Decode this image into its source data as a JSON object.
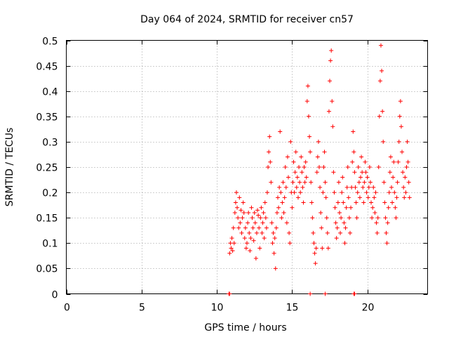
{
  "chart_data": {
    "type": "scatter",
    "title": "Day 064 of 2024, SRMTID for receiver cn57",
    "xlabel": "GPS time / hours",
    "ylabel": "SRMTID / TECUs",
    "xlim": [
      0,
      24
    ],
    "ylim": [
      0,
      0.5
    ],
    "xticks": [
      0,
      5,
      10,
      15,
      20
    ],
    "xtick_labels": [
      "0",
      "5",
      "10",
      "15",
      "20"
    ],
    "yticks": [
      0,
      0.05,
      0.1,
      0.15,
      0.2,
      0.25,
      0.3,
      0.35,
      0.4,
      0.45,
      0.5
    ],
    "ytick_labels": [
      "0",
      "0.05",
      "0.1",
      "0.15",
      "0.2",
      "0.25",
      "0.3",
      "0.35",
      "0.4",
      "0.45",
      "0.5"
    ],
    "grid": true,
    "marker": "+",
    "color": "#ff0000",
    "series": [
      {
        "name": "SRMTID",
        "points": [
          [
            10.8,
            0.0
          ],
          [
            10.85,
            0.0
          ],
          [
            16.2,
            0.0
          ],
          [
            17.2,
            0.0
          ],
          [
            19.1,
            0.0
          ],
          [
            19.15,
            0.0
          ],
          [
            10.85,
            0.08
          ],
          [
            10.9,
            0.1
          ],
          [
            10.95,
            0.09
          ],
          [
            11.0,
            0.11
          ],
          [
            11.05,
            0.085
          ],
          [
            11.1,
            0.13
          ],
          [
            11.15,
            0.1
          ],
          [
            11.2,
            0.16
          ],
          [
            11.25,
            0.18
          ],
          [
            11.3,
            0.2
          ],
          [
            11.35,
            0.17
          ],
          [
            11.4,
            0.15
          ],
          [
            11.45,
            0.13
          ],
          [
            11.5,
            0.19
          ],
          [
            11.55,
            0.14
          ],
          [
            11.6,
            0.165
          ],
          [
            11.65,
            0.12
          ],
          [
            11.7,
            0.15
          ],
          [
            11.75,
            0.18
          ],
          [
            11.8,
            0.16
          ],
          [
            11.85,
            0.11
          ],
          [
            11.9,
            0.13
          ],
          [
            11.95,
            0.09
          ],
          [
            12.0,
            0.1
          ],
          [
            12.05,
            0.14
          ],
          [
            12.1,
            0.16
          ],
          [
            12.15,
            0.12
          ],
          [
            12.2,
            0.085
          ],
          [
            12.25,
            0.11
          ],
          [
            12.3,
            0.17
          ],
          [
            12.35,
            0.15
          ],
          [
            12.4,
            0.13
          ],
          [
            12.45,
            0.105
          ],
          [
            12.5,
            0.16
          ],
          [
            12.55,
            0.14
          ],
          [
            12.6,
            0.07
          ],
          [
            12.65,
            0.12
          ],
          [
            12.7,
            0.165
          ],
          [
            12.75,
            0.155
          ],
          [
            12.8,
            0.13
          ],
          [
            12.85,
            0.09
          ],
          [
            12.9,
            0.15
          ],
          [
            12.95,
            0.17
          ],
          [
            13.0,
            0.12
          ],
          [
            13.05,
            0.14
          ],
          [
            13.1,
            0.16
          ],
          [
            13.15,
            0.11
          ],
          [
            13.2,
            0.18
          ],
          [
            13.25,
            0.15
          ],
          [
            13.3,
            0.13
          ],
          [
            13.35,
            0.2
          ],
          [
            13.4,
            0.25
          ],
          [
            13.45,
            0.28
          ],
          [
            13.5,
            0.31
          ],
          [
            13.55,
            0.26
          ],
          [
            13.6,
            0.22
          ],
          [
            13.65,
            0.14
          ],
          [
            13.7,
            0.1
          ],
          [
            13.75,
            0.12
          ],
          [
            13.8,
            0.08
          ],
          [
            13.85,
            0.11
          ],
          [
            13.9,
            0.05
          ],
          [
            13.95,
            0.13
          ],
          [
            14.0,
            0.16
          ],
          [
            14.05,
            0.19
          ],
          [
            14.1,
            0.17
          ],
          [
            14.15,
            0.21
          ],
          [
            14.2,
            0.32
          ],
          [
            14.25,
            0.2
          ],
          [
            14.3,
            0.15
          ],
          [
            14.35,
            0.18
          ],
          [
            14.4,
            0.22
          ],
          [
            14.45,
            0.16
          ],
          [
            14.5,
            0.19
          ],
          [
            14.55,
            0.25
          ],
          [
            14.6,
            0.21
          ],
          [
            14.65,
            0.14
          ],
          [
            14.7,
            0.27
          ],
          [
            14.75,
            0.23
          ],
          [
            14.8,
            0.12
          ],
          [
            14.85,
            0.1
          ],
          [
            14.9,
            0.3
          ],
          [
            14.95,
            0.2
          ],
          [
            15.0,
            0.17
          ],
          [
            15.05,
            0.22
          ],
          [
            15.1,
            0.26
          ],
          [
            15.15,
            0.2
          ],
          [
            15.2,
            0.24
          ],
          [
            15.25,
            0.28
          ],
          [
            15.3,
            0.21
          ],
          [
            15.35,
            0.23
          ],
          [
            15.4,
            0.19
          ],
          [
            15.45,
            0.25
          ],
          [
            15.5,
            0.22
          ],
          [
            15.55,
            0.2
          ],
          [
            15.6,
            0.27
          ],
          [
            15.65,
            0.24
          ],
          [
            15.7,
            0.21
          ],
          [
            15.75,
            0.18
          ],
          [
            15.8,
            0.25
          ],
          [
            15.85,
            0.22
          ],
          [
            15.9,
            0.26
          ],
          [
            15.95,
            0.23
          ],
          [
            16.0,
            0.38
          ],
          [
            16.05,
            0.41
          ],
          [
            16.1,
            0.35
          ],
          [
            16.15,
            0.31
          ],
          [
            16.2,
            0.28
          ],
          [
            16.25,
            0.22
          ],
          [
            16.3,
            0.18
          ],
          [
            16.35,
            0.15
          ],
          [
            16.4,
            0.12
          ],
          [
            16.45,
            0.1
          ],
          [
            16.5,
            0.08
          ],
          [
            16.55,
            0.06
          ],
          [
            16.6,
            0.09
          ],
          [
            16.65,
            0.24
          ],
          [
            16.7,
            0.27
          ],
          [
            16.75,
            0.3
          ],
          [
            16.8,
            0.25
          ],
          [
            16.85,
            0.21
          ],
          [
            16.9,
            0.16
          ],
          [
            16.95,
            0.13
          ],
          [
            17.0,
            0.09
          ],
          [
            17.05,
            0.2
          ],
          [
            17.1,
            0.25
          ],
          [
            17.15,
            0.28
          ],
          [
            17.2,
            0.22
          ],
          [
            17.25,
            0.19
          ],
          [
            17.3,
            0.15
          ],
          [
            17.35,
            0.12
          ],
          [
            17.4,
            0.09
          ],
          [
            17.45,
            0.36
          ],
          [
            17.5,
            0.42
          ],
          [
            17.55,
            0.46
          ],
          [
            17.6,
            0.48
          ],
          [
            17.65,
            0.38
          ],
          [
            17.7,
            0.33
          ],
          [
            17.75,
            0.24
          ],
          [
            17.8,
            0.2
          ],
          [
            17.85,
            0.17
          ],
          [
            17.9,
            0.14
          ],
          [
            17.95,
            0.11
          ],
          [
            18.0,
            0.13
          ],
          [
            18.05,
            0.18
          ],
          [
            18.1,
            0.22
          ],
          [
            18.15,
            0.16
          ],
          [
            18.2,
            0.12
          ],
          [
            18.25,
            0.15
          ],
          [
            18.3,
            0.2
          ],
          [
            18.35,
            0.23
          ],
          [
            18.4,
            0.18
          ],
          [
            18.45,
            0.14
          ],
          [
            18.5,
            0.1
          ],
          [
            18.55,
            0.13
          ],
          [
            18.6,
            0.17
          ],
          [
            18.65,
            0.21
          ],
          [
            18.7,
            0.25
          ],
          [
            18.75,
            0.19
          ],
          [
            18.8,
            0.15
          ],
          [
            18.85,
            0.12
          ],
          [
            18.9,
            0.17
          ],
          [
            18.95,
            0.21
          ],
          [
            19.0,
            0.26
          ],
          [
            19.05,
            0.32
          ],
          [
            19.1,
            0.28
          ],
          [
            19.15,
            0.24
          ],
          [
            19.2,
            0.21
          ],
          [
            19.25,
            0.18
          ],
          [
            19.3,
            0.15
          ],
          [
            19.35,
            0.2
          ],
          [
            19.4,
            0.25
          ],
          [
            19.45,
            0.22
          ],
          [
            19.5,
            0.19
          ],
          [
            19.55,
            0.23
          ],
          [
            19.6,
            0.27
          ],
          [
            19.65,
            0.24
          ],
          [
            19.7,
            0.21
          ],
          [
            19.75,
            0.18
          ],
          [
            19.8,
            0.22
          ],
          [
            19.85,
            0.26
          ],
          [
            19.9,
            0.24
          ],
          [
            19.95,
            0.2
          ],
          [
            20.0,
            0.23
          ],
          [
            20.05,
            0.19
          ],
          [
            20.1,
            0.21
          ],
          [
            20.15,
            0.25
          ],
          [
            20.2,
            0.22
          ],
          [
            20.25,
            0.18
          ],
          [
            20.3,
            0.15
          ],
          [
            20.35,
            0.17
          ],
          [
            20.4,
            0.21
          ],
          [
            20.45,
            0.19
          ],
          [
            20.5,
            0.16
          ],
          [
            20.55,
            0.2
          ],
          [
            20.6,
            0.14
          ],
          [
            20.65,
            0.12
          ],
          [
            20.7,
            0.15
          ],
          [
            20.75,
            0.25
          ],
          [
            20.8,
            0.35
          ],
          [
            20.85,
            0.42
          ],
          [
            20.9,
            0.49
          ],
          [
            20.95,
            0.44
          ],
          [
            21.0,
            0.36
          ],
          [
            21.05,
            0.3
          ],
          [
            21.1,
            0.22
          ],
          [
            21.15,
            0.18
          ],
          [
            21.2,
            0.15
          ],
          [
            21.25,
            0.12
          ],
          [
            21.3,
            0.1
          ],
          [
            21.35,
            0.14
          ],
          [
            21.4,
            0.17
          ],
          [
            21.45,
            0.2
          ],
          [
            21.5,
            0.24
          ],
          [
            21.55,
            0.27
          ],
          [
            21.6,
            0.21
          ],
          [
            21.65,
            0.18
          ],
          [
            21.7,
            0.23
          ],
          [
            21.75,
            0.26
          ],
          [
            21.8,
            0.2
          ],
          [
            21.85,
            0.17
          ],
          [
            21.9,
            0.15
          ],
          [
            21.95,
            0.19
          ],
          [
            22.0,
            0.22
          ],
          [
            22.05,
            0.26
          ],
          [
            22.1,
            0.3
          ],
          [
            22.15,
            0.35
          ],
          [
            22.2,
            0.38
          ],
          [
            22.25,
            0.33
          ],
          [
            22.3,
            0.28
          ],
          [
            22.35,
            0.24
          ],
          [
            22.4,
            0.21
          ],
          [
            22.45,
            0.19
          ],
          [
            22.5,
            0.23
          ],
          [
            22.55,
            0.2
          ],
          [
            22.6,
            0.25
          ],
          [
            22.65,
            0.3
          ],
          [
            22.7,
            0.26
          ],
          [
            22.75,
            0.22
          ],
          [
            22.8,
            0.19
          ]
        ]
      }
    ]
  }
}
